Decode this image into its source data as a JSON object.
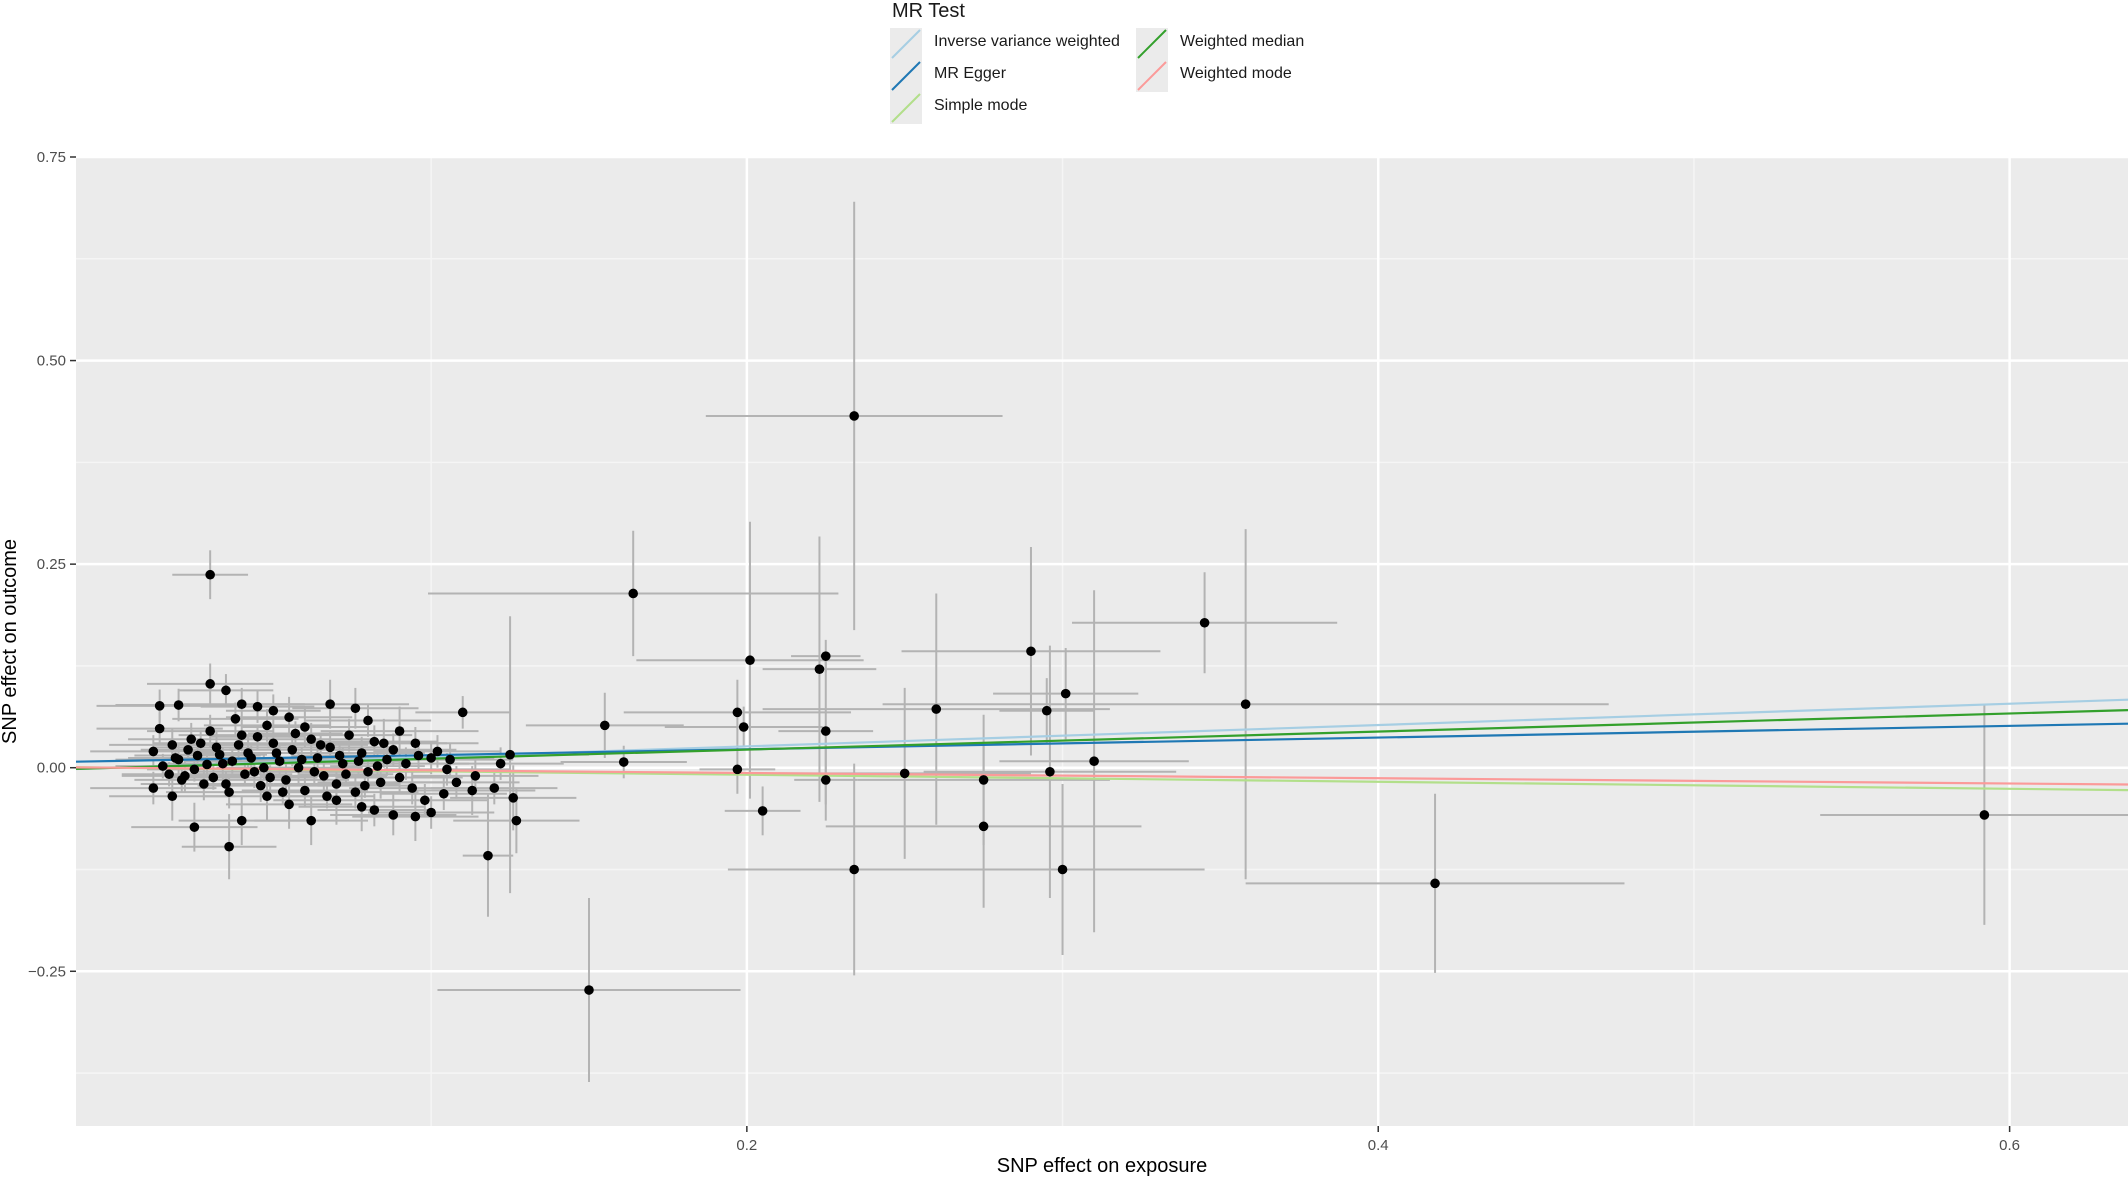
{
  "chart_data": {
    "type": "scatter",
    "xlabel": "SNP effect on exposure",
    "ylabel": "SNP effect on outcome",
    "xlim": [
      -0.0125,
      0.6375
    ],
    "ylim": [
      -0.44,
      0.75
    ],
    "x_ticks": [
      0.2,
      0.4,
      0.6
    ],
    "x_tick_labels": [
      "0.2",
      "0.4",
      "0.6"
    ],
    "y_ticks": [
      -0.25,
      0.0,
      0.25,
      0.5,
      0.75
    ],
    "y_tick_labels": [
      "−0.25",
      "0.00",
      "0.25",
      "0.50",
      "0.75"
    ],
    "grid": true,
    "legend": {
      "title": "MR Test",
      "placement": "top-center",
      "entries": [
        {
          "name": "Inverse variance weighted",
          "color": "#a6cee3"
        },
        {
          "name": "MR Egger",
          "color": "#1f78b4"
        },
        {
          "name": "Simple mode",
          "color": "#b2df8a"
        },
        {
          "name": "Weighted median",
          "color": "#33a02c"
        },
        {
          "name": "Weighted mode",
          "color": "#fb9a99"
        }
      ]
    },
    "lines": [
      {
        "name": "Inverse variance weighted",
        "color": "#a6cee3",
        "intercept": 0.0,
        "slope": 0.131
      },
      {
        "name": "MR Egger",
        "color": "#1f78b4",
        "intercept": 0.0083,
        "slope": 0.0718
      },
      {
        "name": "Simple mode",
        "color": "#b2df8a",
        "intercept": 0.0,
        "slope": -0.0432
      },
      {
        "name": "Weighted median",
        "color": "#33a02c",
        "intercept": 0.0,
        "slope": 0.111
      },
      {
        "name": "Weighted mode",
        "color": "#fb9a99",
        "intercept": 0.0,
        "slope": -0.0323
      }
    ],
    "points": [
      {
        "x": 0.164,
        "y": 0.214,
        "xerr": 0.065,
        "yerr": 0.077
      },
      {
        "x": 0.234,
        "y": 0.432,
        "xerr": 0.047,
        "yerr": 0.263
      },
      {
        "x": 0.345,
        "y": 0.178,
        "xerr": 0.042,
        "yerr": 0.062
      },
      {
        "x": 0.358,
        "y": 0.078,
        "xerr": 0.115,
        "yerr": 0.215
      },
      {
        "x": 0.201,
        "y": 0.132,
        "xerr": 0.036,
        "yerr": 0.17
      },
      {
        "x": 0.225,
        "y": 0.137,
        "xerr": 0.011,
        "yerr": 0.02
      },
      {
        "x": 0.223,
        "y": 0.121,
        "xerr": 0.018,
        "yerr": 0.163
      },
      {
        "x": 0.29,
        "y": 0.143,
        "xerr": 0.041,
        "yerr": 0.128
      },
      {
        "x": 0.301,
        "y": 0.091,
        "xerr": 0.023,
        "yerr": 0.056
      },
      {
        "x": 0.295,
        "y": 0.07,
        "xerr": 0.015,
        "yerr": 0.04
      },
      {
        "x": 0.197,
        "y": 0.068,
        "xerr": 0.036,
        "yerr": 0.04
      },
      {
        "x": 0.199,
        "y": 0.05,
        "xerr": 0.025,
        "yerr": 0.025
      },
      {
        "x": 0.26,
        "y": 0.072,
        "xerr": 0.055,
        "yerr": 0.142
      },
      {
        "x": 0.225,
        "y": 0.045,
        "xerr": 0.015,
        "yerr": 0.09
      },
      {
        "x": 0.25,
        "y": -0.007,
        "xerr": 0.04,
        "yerr": 0.105
      },
      {
        "x": 0.225,
        "y": -0.015,
        "xerr": 0.01,
        "yerr": 0.05
      },
      {
        "x": 0.197,
        "y": -0.002,
        "xerr": 0.012,
        "yerr": 0.03
      },
      {
        "x": 0.205,
        "y": -0.053,
        "xerr": 0.012,
        "yerr": 0.03
      },
      {
        "x": 0.234,
        "y": -0.125,
        "xerr": 0.04,
        "yerr": 0.13
      },
      {
        "x": 0.275,
        "y": -0.072,
        "xerr": 0.05,
        "yerr": 0.1
      },
      {
        "x": 0.275,
        "y": -0.015,
        "xerr": 0.04,
        "yerr": 0.08
      },
      {
        "x": 0.296,
        "y": -0.005,
        "xerr": 0.04,
        "yerr": 0.155
      },
      {
        "x": 0.31,
        "y": 0.008,
        "xerr": 0.03,
        "yerr": 0.21
      },
      {
        "x": 0.3,
        "y": -0.125,
        "xerr": 0.045,
        "yerr": 0.105
      },
      {
        "x": 0.418,
        "y": -0.142,
        "xerr": 0.06,
        "yerr": 0.11
      },
      {
        "x": 0.592,
        "y": -0.058,
        "xerr": 0.052,
        "yerr": 0.135
      },
      {
        "x": 0.155,
        "y": 0.052,
        "xerr": 0.025,
        "yerr": 0.04
      },
      {
        "x": 0.161,
        "y": 0.007,
        "xerr": 0.02,
        "yerr": 0.02
      },
      {
        "x": 0.15,
        "y": -0.273,
        "xerr": 0.048,
        "yerr": 0.113
      },
      {
        "x": 0.11,
        "y": 0.068,
        "xerr": 0.015,
        "yerr": 0.02
      },
      {
        "x": 0.118,
        "y": -0.108,
        "xerr": 0.008,
        "yerr": 0.075
      },
      {
        "x": 0.113,
        "y": -0.028,
        "xerr": 0.02,
        "yerr": 0.03
      },
      {
        "x": 0.125,
        "y": 0.016,
        "xerr": 0.025,
        "yerr": 0.17
      },
      {
        "x": 0.126,
        "y": -0.037,
        "xerr": 0.02,
        "yerr": 0.04
      },
      {
        "x": 0.127,
        "y": -0.065,
        "xerr": 0.02,
        "yerr": 0.04
      },
      {
        "x": 0.03,
        "y": 0.237,
        "xerr": 0.012,
        "yerr": 0.03
      },
      {
        "x": 0.014,
        "y": 0.076,
        "xerr": 0.02,
        "yerr": 0.02
      },
      {
        "x": 0.02,
        "y": 0.077,
        "xerr": 0.02,
        "yerr": 0.02
      },
      {
        "x": 0.03,
        "y": 0.103,
        "xerr": 0.02,
        "yerr": 0.025
      },
      {
        "x": 0.035,
        "y": 0.095,
        "xerr": 0.015,
        "yerr": 0.02
      },
      {
        "x": 0.04,
        "y": 0.078,
        "xerr": 0.02,
        "yerr": 0.02
      },
      {
        "x": 0.045,
        "y": 0.075,
        "xerr": 0.018,
        "yerr": 0.02
      },
      {
        "x": 0.05,
        "y": 0.07,
        "xerr": 0.015,
        "yerr": 0.02
      },
      {
        "x": 0.055,
        "y": 0.062,
        "xerr": 0.02,
        "yerr": 0.025
      },
      {
        "x": 0.06,
        "y": 0.05,
        "xerr": 0.02,
        "yerr": 0.025
      },
      {
        "x": 0.068,
        "y": 0.078,
        "xerr": 0.025,
        "yerr": 0.03
      },
      {
        "x": 0.076,
        "y": 0.073,
        "xerr": 0.02,
        "yerr": 0.025
      },
      {
        "x": 0.08,
        "y": 0.058,
        "xerr": 0.02,
        "yerr": 0.02
      },
      {
        "x": 0.09,
        "y": 0.045,
        "xerr": 0.025,
        "yerr": 0.03
      },
      {
        "x": 0.085,
        "y": 0.03,
        "xerr": 0.02,
        "yerr": 0.03
      },
      {
        "x": 0.095,
        "y": 0.03,
        "xerr": 0.02,
        "yerr": 0.02
      },
      {
        "x": 0.1,
        "y": 0.012,
        "xerr": 0.02,
        "yerr": 0.02
      },
      {
        "x": 0.105,
        "y": -0.002,
        "xerr": 0.02,
        "yerr": 0.02
      },
      {
        "x": 0.095,
        "y": -0.06,
        "xerr": 0.02,
        "yerr": 0.03
      },
      {
        "x": 0.088,
        "y": -0.058,
        "xerr": 0.02,
        "yerr": 0.025
      },
      {
        "x": 0.082,
        "y": -0.052,
        "xerr": 0.018,
        "yerr": 0.02
      },
      {
        "x": 0.078,
        "y": -0.048,
        "xerr": 0.02,
        "yerr": 0.03
      },
      {
        "x": 0.07,
        "y": -0.04,
        "xerr": 0.02,
        "yerr": 0.03
      },
      {
        "x": 0.062,
        "y": -0.065,
        "xerr": 0.018,
        "yerr": 0.03
      },
      {
        "x": 0.055,
        "y": -0.045,
        "xerr": 0.02,
        "yerr": 0.03
      },
      {
        "x": 0.048,
        "y": -0.035,
        "xerr": 0.02,
        "yerr": 0.03
      },
      {
        "x": 0.04,
        "y": -0.065,
        "xerr": 0.02,
        "yerr": 0.03
      },
      {
        "x": 0.036,
        "y": -0.097,
        "xerr": 0.015,
        "yerr": 0.04
      },
      {
        "x": 0.025,
        "y": -0.073,
        "xerr": 0.02,
        "yerr": 0.03
      },
      {
        "x": 0.018,
        "y": -0.035,
        "xerr": 0.02,
        "yerr": 0.03
      },
      {
        "x": 0.012,
        "y": -0.025,
        "xerr": 0.02,
        "yerr": 0.02
      },
      {
        "x": 0.012,
        "y": 0.02,
        "xerr": 0.02,
        "yerr": 0.02
      },
      {
        "x": 0.014,
        "y": 0.048,
        "xerr": 0.02,
        "yerr": 0.02
      },
      {
        "x": 0.018,
        "y": 0.028,
        "xerr": 0.02,
        "yerr": 0.02
      },
      {
        "x": 0.02,
        "y": 0.01,
        "xerr": 0.02,
        "yerr": 0.02
      },
      {
        "x": 0.022,
        "y": -0.01,
        "xerr": 0.02,
        "yerr": 0.02
      },
      {
        "x": 0.024,
        "y": 0.035,
        "xerr": 0.02,
        "yerr": 0.02
      },
      {
        "x": 0.026,
        "y": 0.015,
        "xerr": 0.02,
        "yerr": 0.02
      },
      {
        "x": 0.028,
        "y": -0.02,
        "xerr": 0.02,
        "yerr": 0.02
      },
      {
        "x": 0.03,
        "y": 0.045,
        "xerr": 0.02,
        "yerr": 0.02
      },
      {
        "x": 0.032,
        "y": 0.025,
        "xerr": 0.02,
        "yerr": 0.02
      },
      {
        "x": 0.034,
        "y": 0.005,
        "xerr": 0.02,
        "yerr": 0.02
      },
      {
        "x": 0.036,
        "y": -0.03,
        "xerr": 0.02,
        "yerr": 0.02
      },
      {
        "x": 0.038,
        "y": 0.06,
        "xerr": 0.02,
        "yerr": 0.02
      },
      {
        "x": 0.04,
        "y": 0.04,
        "xerr": 0.02,
        "yerr": 0.02
      },
      {
        "x": 0.042,
        "y": 0.018,
        "xerr": 0.02,
        "yerr": 0.02
      },
      {
        "x": 0.044,
        "y": -0.005,
        "xerr": 0.02,
        "yerr": 0.02
      },
      {
        "x": 0.046,
        "y": -0.022,
        "xerr": 0.02,
        "yerr": 0.02
      },
      {
        "x": 0.048,
        "y": 0.052,
        "xerr": 0.02,
        "yerr": 0.02
      },
      {
        "x": 0.05,
        "y": 0.03,
        "xerr": 0.02,
        "yerr": 0.02
      },
      {
        "x": 0.052,
        "y": 0.008,
        "xerr": 0.02,
        "yerr": 0.02
      },
      {
        "x": 0.054,
        "y": -0.015,
        "xerr": 0.02,
        "yerr": 0.02
      },
      {
        "x": 0.056,
        "y": 0.022,
        "xerr": 0.02,
        "yerr": 0.02
      },
      {
        "x": 0.058,
        "y": 0.0,
        "xerr": 0.02,
        "yerr": 0.02
      },
      {
        "x": 0.06,
        "y": -0.028,
        "xerr": 0.02,
        "yerr": 0.02
      },
      {
        "x": 0.062,
        "y": 0.035,
        "xerr": 0.02,
        "yerr": 0.02
      },
      {
        "x": 0.064,
        "y": 0.012,
        "xerr": 0.02,
        "yerr": 0.02
      },
      {
        "x": 0.066,
        "y": -0.01,
        "xerr": 0.02,
        "yerr": 0.02
      },
      {
        "x": 0.068,
        "y": 0.025,
        "xerr": 0.02,
        "yerr": 0.02
      },
      {
        "x": 0.07,
        "y": -0.02,
        "xerr": 0.02,
        "yerr": 0.02
      },
      {
        "x": 0.072,
        "y": 0.005,
        "xerr": 0.02,
        "yerr": 0.02
      },
      {
        "x": 0.074,
        "y": 0.04,
        "xerr": 0.02,
        "yerr": 0.02
      },
      {
        "x": 0.076,
        "y": -0.03,
        "xerr": 0.02,
        "yerr": 0.02
      },
      {
        "x": 0.078,
        "y": 0.018,
        "xerr": 0.02,
        "yerr": 0.02
      },
      {
        "x": 0.08,
        "y": -0.005,
        "xerr": 0.02,
        "yerr": 0.02
      },
      {
        "x": 0.082,
        "y": 0.032,
        "xerr": 0.02,
        "yerr": 0.02
      },
      {
        "x": 0.084,
        "y": -0.018,
        "xerr": 0.02,
        "yerr": 0.02
      },
      {
        "x": 0.086,
        "y": 0.01,
        "xerr": 0.02,
        "yerr": 0.02
      },
      {
        "x": 0.088,
        "y": 0.022,
        "xerr": 0.02,
        "yerr": 0.02
      },
      {
        "x": 0.09,
        "y": -0.012,
        "xerr": 0.02,
        "yerr": 0.02
      },
      {
        "x": 0.092,
        "y": 0.005,
        "xerr": 0.02,
        "yerr": 0.02
      },
      {
        "x": 0.094,
        "y": -0.025,
        "xerr": 0.02,
        "yerr": 0.02
      },
      {
        "x": 0.096,
        "y": 0.015,
        "xerr": 0.02,
        "yerr": 0.02
      },
      {
        "x": 0.098,
        "y": -0.04,
        "xerr": 0.02,
        "yerr": 0.02
      },
      {
        "x": 0.1,
        "y": -0.055,
        "xerr": 0.02,
        "yerr": 0.02
      },
      {
        "x": 0.102,
        "y": 0.02,
        "xerr": 0.02,
        "yerr": 0.02
      },
      {
        "x": 0.104,
        "y": -0.032,
        "xerr": 0.02,
        "yerr": 0.02
      },
      {
        "x": 0.106,
        "y": 0.01,
        "xerr": 0.02,
        "yerr": 0.02
      },
      {
        "x": 0.108,
        "y": -0.018,
        "xerr": 0.02,
        "yerr": 0.02
      },
      {
        "x": 0.114,
        "y": -0.01,
        "xerr": 0.02,
        "yerr": 0.02
      },
      {
        "x": 0.12,
        "y": -0.025,
        "xerr": 0.02,
        "yerr": 0.02
      },
      {
        "x": 0.122,
        "y": 0.005,
        "xerr": 0.02,
        "yerr": 0.02
      },
      {
        "x": 0.015,
        "y": 0.002,
        "xerr": 0.015,
        "yerr": 0.015
      },
      {
        "x": 0.017,
        "y": -0.008,
        "xerr": 0.015,
        "yerr": 0.015
      },
      {
        "x": 0.019,
        "y": 0.012,
        "xerr": 0.015,
        "yerr": 0.015
      },
      {
        "x": 0.021,
        "y": -0.015,
        "xerr": 0.015,
        "yerr": 0.015
      },
      {
        "x": 0.023,
        "y": 0.022,
        "xerr": 0.015,
        "yerr": 0.015
      },
      {
        "x": 0.025,
        "y": -0.002,
        "xerr": 0.015,
        "yerr": 0.015
      },
      {
        "x": 0.027,
        "y": 0.03,
        "xerr": 0.015,
        "yerr": 0.015
      },
      {
        "x": 0.029,
        "y": 0.004,
        "xerr": 0.015,
        "yerr": 0.015
      },
      {
        "x": 0.031,
        "y": -0.012,
        "xerr": 0.015,
        "yerr": 0.015
      },
      {
        "x": 0.033,
        "y": 0.016,
        "xerr": 0.015,
        "yerr": 0.015
      },
      {
        "x": 0.035,
        "y": -0.02,
        "xerr": 0.015,
        "yerr": 0.015
      },
      {
        "x": 0.037,
        "y": 0.008,
        "xerr": 0.015,
        "yerr": 0.015
      },
      {
        "x": 0.039,
        "y": 0.028,
        "xerr": 0.015,
        "yerr": 0.015
      },
      {
        "x": 0.041,
        "y": -0.008,
        "xerr": 0.015,
        "yerr": 0.015
      },
      {
        "x": 0.043,
        "y": 0.012,
        "xerr": 0.015,
        "yerr": 0.015
      },
      {
        "x": 0.045,
        "y": 0.038,
        "xerr": 0.015,
        "yerr": 0.015
      },
      {
        "x": 0.047,
        "y": 0.0,
        "xerr": 0.015,
        "yerr": 0.015
      },
      {
        "x": 0.049,
        "y": -0.012,
        "xerr": 0.015,
        "yerr": 0.015
      },
      {
        "x": 0.051,
        "y": 0.018,
        "xerr": 0.015,
        "yerr": 0.015
      },
      {
        "x": 0.053,
        "y": -0.03,
        "xerr": 0.015,
        "yerr": 0.015
      },
      {
        "x": 0.057,
        "y": 0.042,
        "xerr": 0.015,
        "yerr": 0.015
      },
      {
        "x": 0.059,
        "y": 0.01,
        "xerr": 0.015,
        "yerr": 0.015
      },
      {
        "x": 0.063,
        "y": -0.005,
        "xerr": 0.015,
        "yerr": 0.015
      },
      {
        "x": 0.065,
        "y": 0.028,
        "xerr": 0.015,
        "yerr": 0.015
      },
      {
        "x": 0.067,
        "y": -0.035,
        "xerr": 0.015,
        "yerr": 0.015
      },
      {
        "x": 0.071,
        "y": 0.015,
        "xerr": 0.015,
        "yerr": 0.015
      },
      {
        "x": 0.073,
        "y": -0.008,
        "xerr": 0.015,
        "yerr": 0.015
      },
      {
        "x": 0.077,
        "y": 0.008,
        "xerr": 0.015,
        "yerr": 0.015
      },
      {
        "x": 0.079,
        "y": -0.022,
        "xerr": 0.015,
        "yerr": 0.015
      },
      {
        "x": 0.083,
        "y": 0.002,
        "xerr": 0.015,
        "yerr": 0.015
      }
    ]
  }
}
